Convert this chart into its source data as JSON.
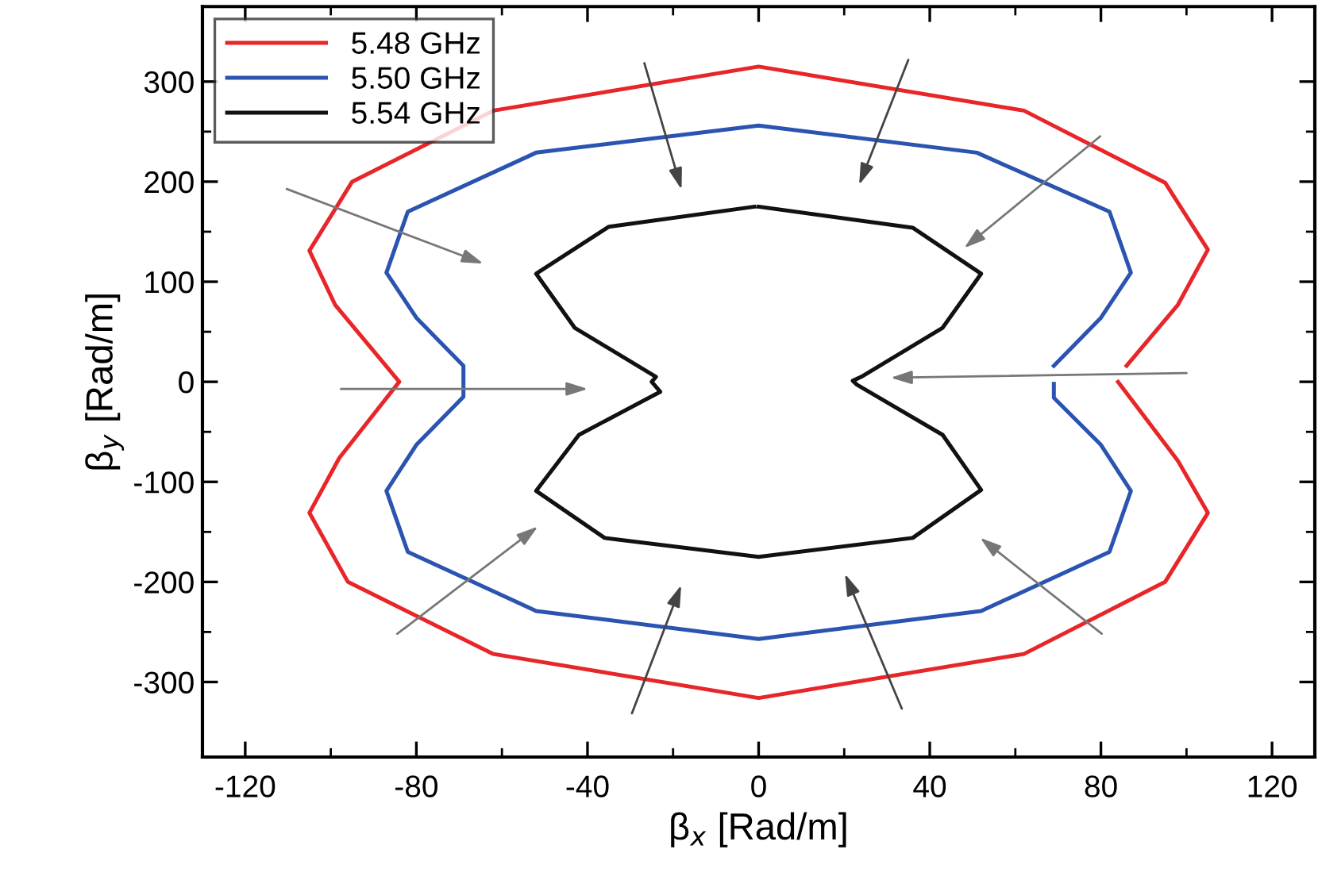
{
  "chart_data": {
    "type": "line",
    "xlabel": "β$_{x}$ [Rad/m]",
    "ylabel": "β$_{y}$ [Rad/m]",
    "xlim": [
      -130,
      130
    ],
    "ylim": [
      -375,
      375
    ],
    "xticks": [
      -120,
      -80,
      -40,
      0,
      40,
      80,
      120
    ],
    "yticks": [
      -300,
      -200,
      -100,
      0,
      100,
      200,
      300
    ],
    "grid": false,
    "legend": "top left",
    "line_style": "solid",
    "series": [
      {
        "name": "5.48 GHz",
        "color": "#e8262a",
        "x": [
          86,
          98,
          105,
          95,
          62,
          0,
          -62,
          -95,
          -105,
          -99,
          -84,
          -98,
          -105,
          -96,
          -62,
          0,
          62,
          95,
          105,
          98,
          84
        ],
        "values": [
          16,
          77,
          132,
          199,
          271,
          315,
          271,
          200,
          131,
          77,
          0,
          -76,
          -131,
          -200,
          -272,
          -316,
          -272,
          -200,
          -131,
          -79,
          0
        ]
      },
      {
        "name": "5.50 GHz",
        "color": "#2b54b0",
        "x": [
          69,
          80,
          87,
          82,
          51,
          0,
          -52,
          -82,
          -87,
          -80,
          -69,
          -69,
          -80,
          -87,
          -82,
          -52,
          0,
          52,
          82,
          87,
          80,
          69,
          69
        ],
        "values": [
          16,
          64,
          109,
          170,
          229,
          256,
          229,
          170,
          109,
          64,
          16,
          -15,
          -63,
          -109,
          -170,
          -229,
          -257,
          -229,
          -170,
          -109,
          -63,
          -16,
          -2
        ]
      },
      {
        "name": "5.54 GHz",
        "color": "#111111",
        "x": [
          0,
          36,
          52,
          43,
          24,
          22,
          23,
          43,
          52,
          36,
          0,
          -36,
          -52,
          -42,
          -23,
          -25,
          -24,
          -43,
          -52,
          -35,
          -1
        ],
        "values": [
          175,
          154,
          108,
          54,
          5,
          1,
          -3,
          -53,
          -108,
          -156,
          -175,
          -156,
          -109,
          -53,
          -10,
          0,
          5,
          54,
          108,
          155,
          175
        ]
      }
    ]
  }
}
